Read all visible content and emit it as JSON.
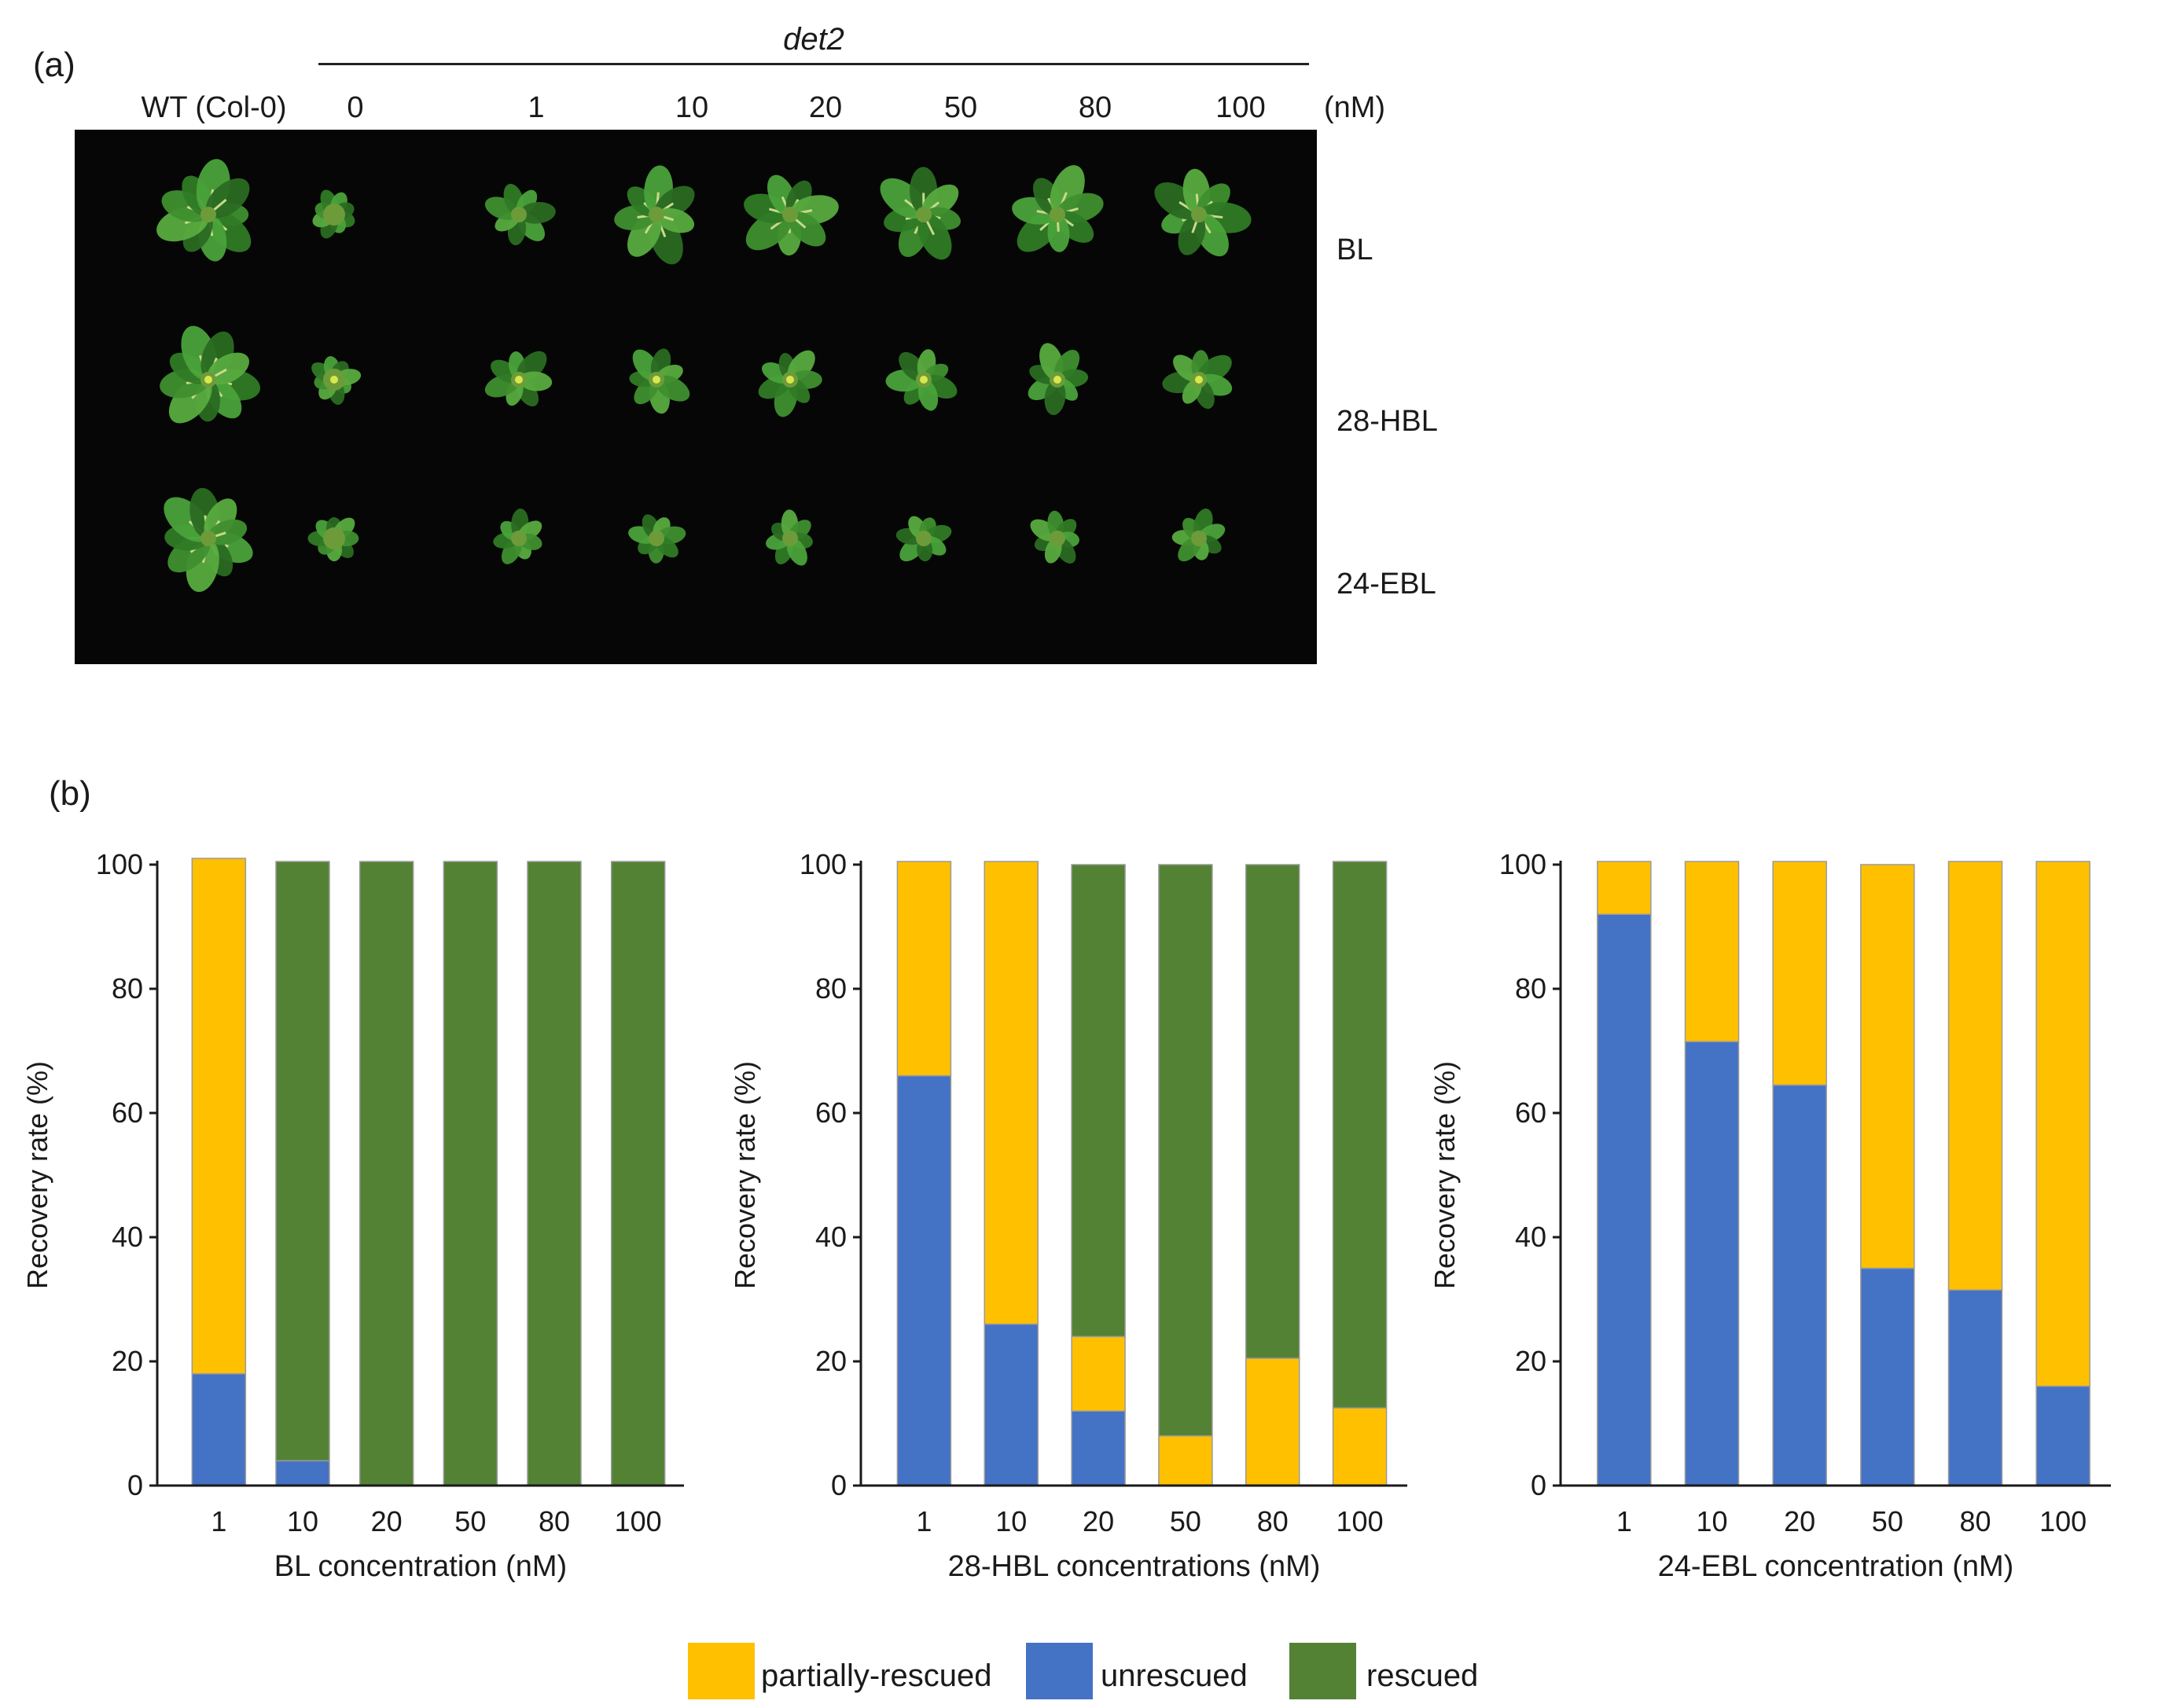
{
  "panel_a": {
    "label": "(a)",
    "genotype_label": "det2",
    "wt_label": "WT (Col-0)",
    "concentrations": [
      "0",
      "1",
      "10",
      "20",
      "50",
      "80",
      "100"
    ],
    "unit": "(nM)",
    "rows": [
      "BL",
      "28-HBL",
      "24-EBL"
    ]
  },
  "panel_b": {
    "label": "(b)"
  },
  "legend": [
    {
      "name": "partially-rescued",
      "color": "#ffc000"
    },
    {
      "name": "unrescued",
      "color": "#4472c4"
    },
    {
      "name": "rescued",
      "color": "#548235"
    }
  ],
  "colors": {
    "axis": "#1a1a1a",
    "bar_edge": "#9a9a9a",
    "photo_bg": "#050605",
    "leaf": "#2e7d32"
  },
  "chart_data": [
    {
      "type": "bar",
      "stacked": true,
      "xlabel": "BL  concentration (nM)",
      "ylabel": "Recovery rate (%)",
      "categories": [
        "1",
        "10",
        "20",
        "50",
        "80",
        "100"
      ],
      "ylim": [
        0,
        100
      ],
      "yticks": [
        "0",
        "20",
        "40",
        "60",
        "80",
        "100"
      ],
      "series": [
        {
          "name": "unrescued",
          "values": [
            18,
            4,
            0,
            0,
            0,
            0
          ]
        },
        {
          "name": "partially-rescued",
          "values": [
            83,
            0,
            0,
            0,
            0,
            0
          ]
        },
        {
          "name": "rescued",
          "values": [
            0,
            96.5,
            100.5,
            100.5,
            100.5,
            100.5
          ]
        }
      ]
    },
    {
      "type": "bar",
      "stacked": true,
      "xlabel": "28-HBL concentrations (nM)",
      "ylabel": "Recovery rate (%)",
      "categories": [
        "1",
        "10",
        "20",
        "50",
        "80",
        "100"
      ],
      "ylim": [
        0,
        100
      ],
      "yticks": [
        "0",
        "20",
        "40",
        "60",
        "80",
        "100"
      ],
      "series": [
        {
          "name": "unrescued",
          "values": [
            66,
            26,
            12,
            0,
            0,
            0
          ]
        },
        {
          "name": "partially-rescued",
          "values": [
            34.5,
            74.5,
            12,
            8,
            20.5,
            12.5
          ]
        },
        {
          "name": "rescued",
          "values": [
            0,
            0,
            76,
            92,
            79.5,
            88
          ]
        }
      ]
    },
    {
      "type": "bar",
      "stacked": true,
      "xlabel": "24-EBL concentration (nM)",
      "ylabel": "Recovery rate (%)",
      "categories": [
        "1",
        "10",
        "20",
        "50",
        "80",
        "100"
      ],
      "ylim": [
        0,
        100
      ],
      "yticks": [
        "0",
        "20",
        "40",
        "60",
        "80",
        "100"
      ],
      "series": [
        {
          "name": "unrescued",
          "values": [
            92,
            71.5,
            64.5,
            35,
            31.5,
            16
          ]
        },
        {
          "name": "partially-rescued",
          "values": [
            8.5,
            29,
            36,
            65,
            69,
            84.5
          ]
        },
        {
          "name": "rescued",
          "values": [
            0,
            0,
            0,
            0,
            0,
            0
          ]
        }
      ]
    }
  ]
}
